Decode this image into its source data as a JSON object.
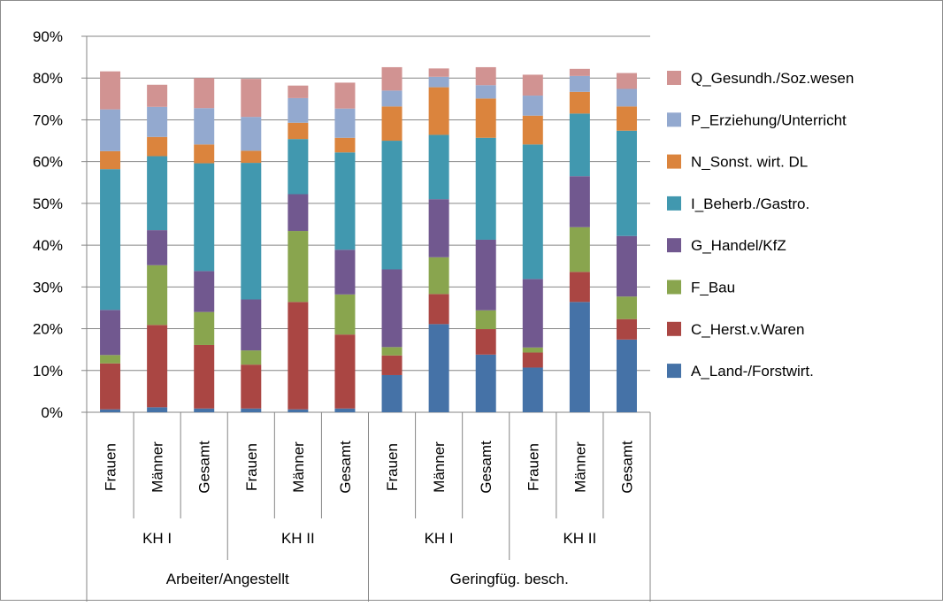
{
  "chart_data": {
    "type": "bar",
    "stacked": true,
    "title": "",
    "xlabel": "",
    "ylabel": "",
    "ylim": [
      0,
      0.9
    ],
    "y_ticks": [
      0,
      0.1,
      0.2,
      0.3,
      0.4,
      0.5,
      0.6,
      0.7,
      0.8,
      0.9
    ],
    "y_tick_labels": [
      "0%",
      "10%",
      "20%",
      "30%",
      "40%",
      "50%",
      "60%",
      "70%",
      "80%",
      "90%"
    ],
    "gridlines": "horizontal",
    "legend_position": "right",
    "categories": [
      "Frauen",
      "Männer",
      "Gesamt",
      "Frauen",
      "Männer",
      "Gesamt",
      "Frauen",
      "Männer",
      "Gesamt",
      "Frauen",
      "Männer",
      "Gesamt"
    ],
    "category_groups": [
      {
        "label": "KH I",
        "span": 3
      },
      {
        "label": "KH II",
        "span": 3
      },
      {
        "label": "KH I",
        "span": 3
      },
      {
        "label": "KH II",
        "span": 3
      }
    ],
    "top_groups": [
      {
        "label": "Arbeiter/Angestellt",
        "span": 6
      },
      {
        "label": "Geringfüg. besch.",
        "span": 6
      }
    ],
    "series": [
      {
        "name": "A_Land-/Forstwirt.",
        "color": "#4572A7",
        "values": [
          0.007,
          0.012,
          0.009,
          0.009,
          0.007,
          0.009,
          0.089,
          0.211,
          0.138,
          0.107,
          0.264,
          0.174
        ]
      },
      {
        "name": "C_Herst.v.Waren",
        "color": "#AA4643",
        "values": [
          0.11,
          0.197,
          0.152,
          0.105,
          0.257,
          0.177,
          0.047,
          0.072,
          0.061,
          0.036,
          0.072,
          0.049
        ]
      },
      {
        "name": "F_Bau",
        "color": "#89A54E",
        "values": [
          0.02,
          0.143,
          0.079,
          0.034,
          0.17,
          0.096,
          0.02,
          0.088,
          0.045,
          0.012,
          0.107,
          0.054
        ]
      },
      {
        "name": "G_Handel/KfZ",
        "color": "#71588F",
        "values": [
          0.108,
          0.084,
          0.098,
          0.122,
          0.088,
          0.107,
          0.186,
          0.139,
          0.169,
          0.164,
          0.122,
          0.145
        ]
      },
      {
        "name": "I_Beherb./Gastro.",
        "color": "#4198AF",
        "values": [
          0.337,
          0.177,
          0.258,
          0.327,
          0.132,
          0.233,
          0.308,
          0.154,
          0.244,
          0.322,
          0.15,
          0.252
        ]
      },
      {
        "name": "N_Sonst. wirt. DL",
        "color": "#DB843D",
        "values": [
          0.043,
          0.046,
          0.045,
          0.029,
          0.039,
          0.035,
          0.082,
          0.114,
          0.094,
          0.069,
          0.052,
          0.058
        ]
      },
      {
        "name": "P_Erziehung/Unterricht",
        "color": "#93A9CF",
        "values": [
          0.1,
          0.072,
          0.087,
          0.081,
          0.059,
          0.07,
          0.038,
          0.025,
          0.032,
          0.048,
          0.038,
          0.042
        ]
      },
      {
        "name": "Q_Gesundh./Soz.wesen",
        "color": "#D19392",
        "values": [
          0.091,
          0.053,
          0.072,
          0.091,
          0.03,
          0.062,
          0.056,
          0.02,
          0.043,
          0.05,
          0.017,
          0.038
        ]
      }
    ]
  }
}
